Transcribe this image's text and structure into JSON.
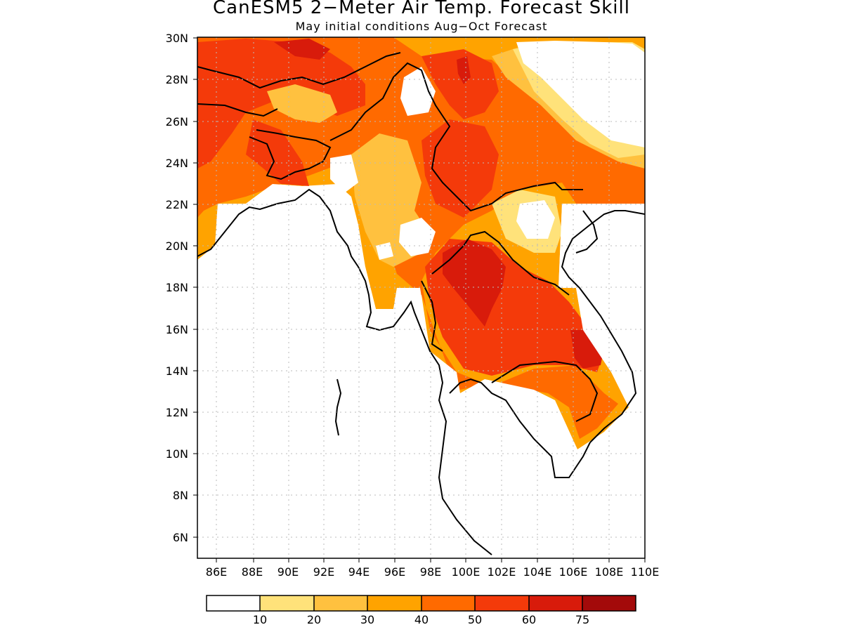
{
  "title": "CanESM5 2−Meter Air Temp. Forecast Skill",
  "subtitle": "May initial conditions  Aug−Oct Forecast",
  "lat_ticks": [
    "30N",
    "28N",
    "26N",
    "24N",
    "22N",
    "20N",
    "18N",
    "16N",
    "14N",
    "12N",
    "10N",
    "8N",
    "6N"
  ],
  "lon_ticks": [
    "86E",
    "88E",
    "90E",
    "92E",
    "94E",
    "96E",
    "98E",
    "100E",
    "102E",
    "104E",
    "106E",
    "108E",
    "110E"
  ],
  "colorbar": {
    "labels": [
      "10",
      "20",
      "30",
      "40",
      "50",
      "60",
      "75"
    ],
    "colors": [
      "#ffffff",
      "#ffe27a",
      "#ffc13f",
      "#ffa300",
      "#ff6a00",
      "#f43a0a",
      "#d81b0b",
      "#a30a0a"
    ]
  },
  "map": {
    "lon_range": [
      85,
      110
    ],
    "lat_range": [
      5,
      30
    ],
    "variable": "forecast skill",
    "coastlines": "black"
  }
}
